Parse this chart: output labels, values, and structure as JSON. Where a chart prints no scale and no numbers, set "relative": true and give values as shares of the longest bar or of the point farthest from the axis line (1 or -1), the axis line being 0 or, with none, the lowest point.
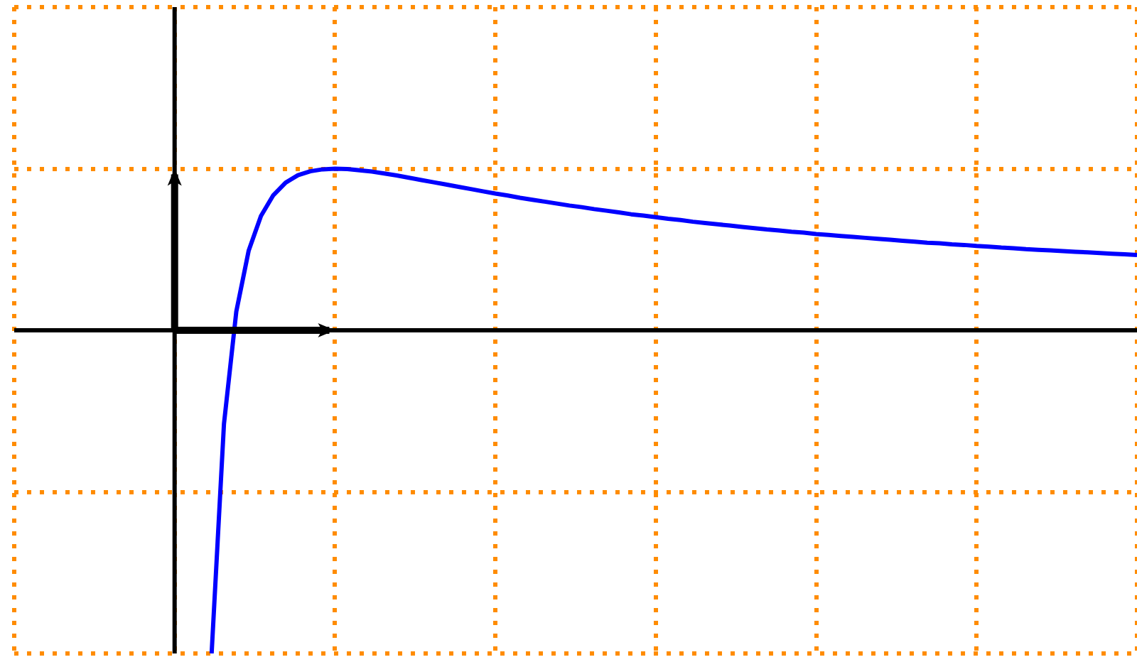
{
  "chart_data": {
    "type": "line",
    "relative": true,
    "categories": [
      null,
      null,
      null,
      null,
      null,
      null,
      null,
      null,
      null,
      null,
      null,
      null,
      null,
      null,
      null,
      null,
      null,
      null,
      null,
      null,
      null,
      null,
      null,
      null,
      null,
      null,
      null,
      null,
      null,
      null,
      null,
      null,
      null,
      null,
      null,
      null,
      null,
      null,
      null,
      null,
      null,
      null,
      null,
      null,
      null,
      null,
      null,
      null,
      null,
      null,
      null,
      null,
      null,
      null,
      null,
      null,
      null,
      null,
      null,
      null,
      null,
      null,
      null,
      null,
      null,
      null,
      null,
      null,
      null,
      null,
      null,
      null,
      null,
      null,
      null,
      null,
      null,
      null,
      null,
      null,
      null,
      null,
      null,
      null,
      null,
      null,
      null,
      null,
      null,
      null,
      null,
      null
    ],
    "series": [
      {
        "color": "#0000ff",
        "values": [
          null,
          null,
          null,
          null,
          null,
          null,
          null,
          null,
          null,
          null,
          null,
          null,
          null,
          null,
          null,
          null,
          -1,
          -0.29,
          0.058,
          0.246,
          0.354,
          0.418,
          0.457,
          0.48,
          0.492,
          0.498,
          0.5,
          0.499,
          0.495,
          0.491,
          0.485,
          0.479,
          0.472,
          0.465,
          0.458,
          0.451,
          0.444,
          0.437,
          0.43,
          0.423,
          0.417,
          0.41,
          0.404,
          0.398,
          0.392,
          0.386,
          0.381,
          0.375,
          0.37,
          0.365,
          0.359,
          0.355,
          0.35,
          0.345,
          0.341,
          0.336,
          0.332,
          0.328,
          0.324,
          0.32,
          0.316,
          0.312,
          0.309,
          0.305,
          0.302,
          0.298,
          0.295,
          0.292,
          0.289,
          0.286,
          0.283,
          0.28,
          0.277,
          0.274,
          0.271,
          0.269,
          0.266,
          0.264,
          0.261,
          0.259,
          0.256,
          0.254,
          0.251,
          0.249,
          0.247,
          0.245,
          0.243,
          0.241,
          0.239,
          0.237,
          0.235,
          0.233
        ]
      }
    ],
    "grid": true,
    "legend": false,
    "marker": "none",
    "line_style": "solid"
  }
}
